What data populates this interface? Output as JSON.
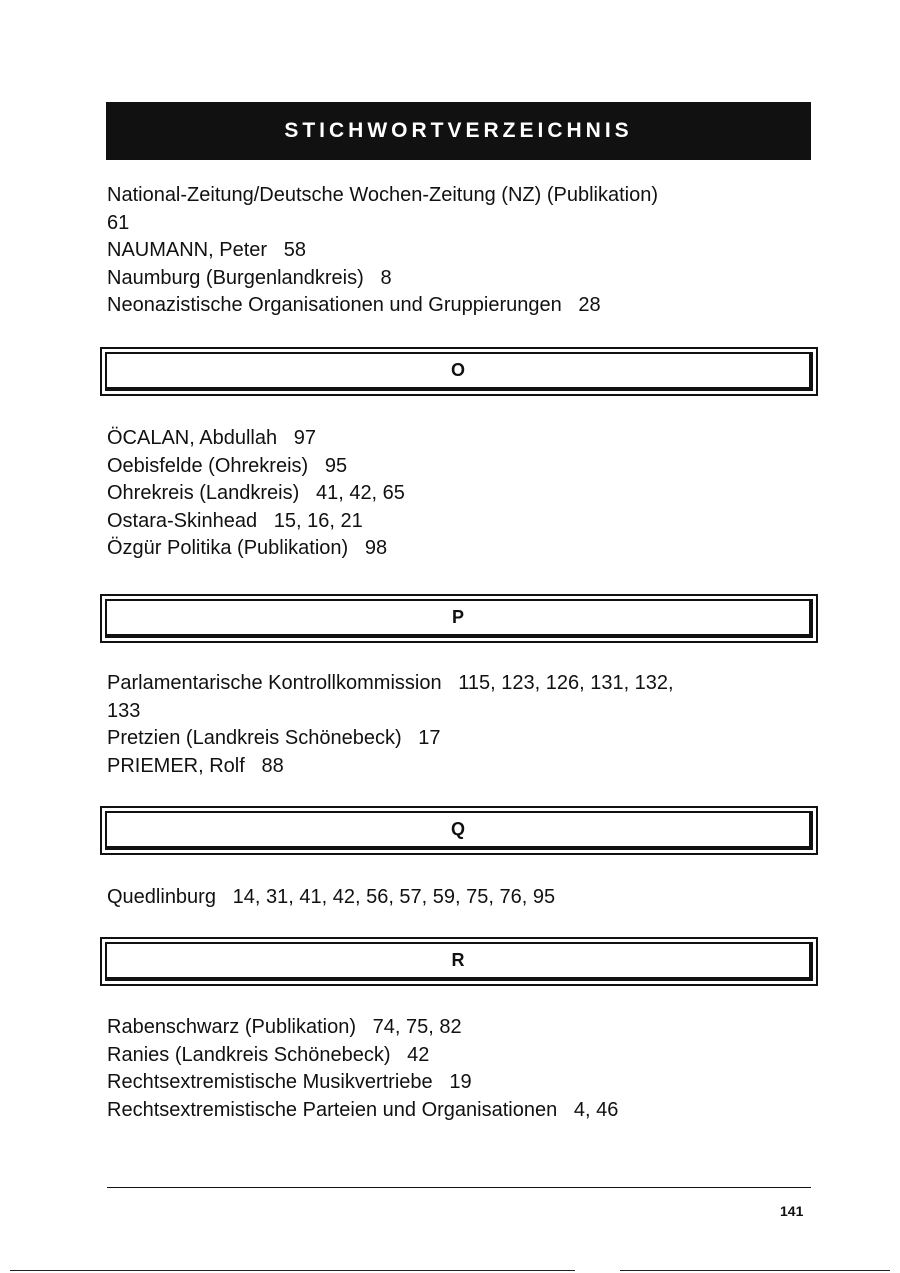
{
  "header": {
    "title": "STICHWORTVERZEICHNIS"
  },
  "sections": [
    {
      "entries": [
        "National-Zeitung/Deutsche Wochen-Zeitung (NZ) (Publikation)",
        "61",
        "NAUMANN, Peter   58",
        "Naumburg (Burgenlandkreis)   8",
        "Neonazistische Organisationen und Gruppierungen   28"
      ]
    },
    {
      "letter": "O",
      "entries": [
        "ÖCALAN, Abdullah   97",
        "Oebisfelde (Ohrekreis)   95",
        "Ohrekreis (Landkreis)   41, 42, 65",
        "Ostara-Skinhead   15, 16, 21",
        "Özgür Politika (Publikation)   98"
      ]
    },
    {
      "letter": "P",
      "entries": [
        "Parlamentarische Kontrollkommission   115, 123, 126, 131, 132,",
        "133",
        "Pretzien (Landkreis Schönebeck)   17",
        "PRIEMER, Rolf   88"
      ]
    },
    {
      "letter": "Q",
      "entries": [
        "Quedlinburg   14, 31, 41, 42, 56, 57, 59, 75, 76, 95"
      ]
    },
    {
      "letter": "R",
      "entries": [
        "Rabenschwarz (Publikation)   74, 75, 82",
        "Ranies (Landkreis Schönebeck)   42",
        "Rechtsextremistische Musikvertriebe   19",
        "Rechtsextremistische Parteien und Organisationen   4, 46"
      ]
    }
  ],
  "footer": {
    "page_number": "141"
  }
}
